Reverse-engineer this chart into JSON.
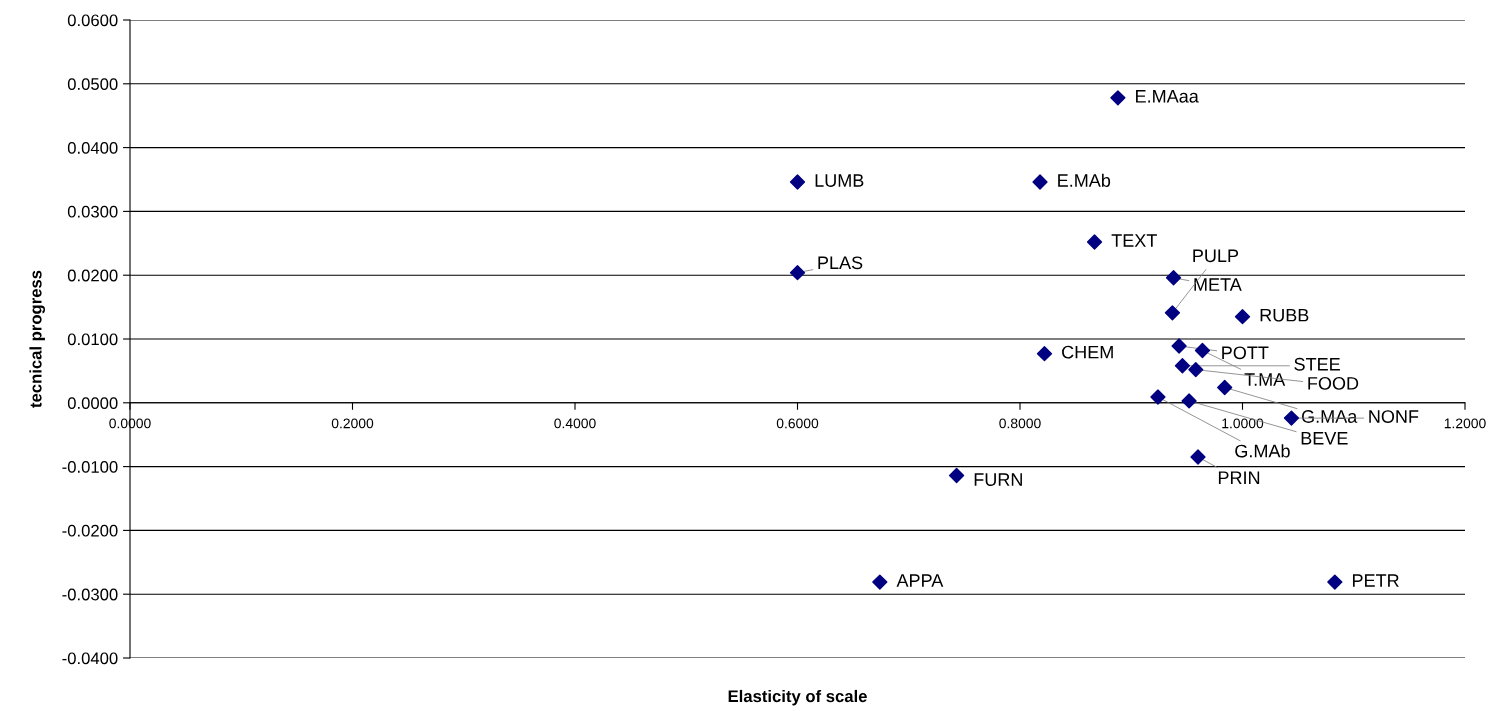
{
  "chart_data": {
    "type": "scatter",
    "xlabel": "Elasticity of scale",
    "ylabel": "tecnical progress",
    "x": [
      0.888,
      0.6,
      0.818,
      0.867,
      0.6,
      0.938,
      0.937,
      1.0,
      0.943,
      0.964,
      0.822,
      0.946,
      0.958,
      0.984,
      0.924,
      0.952,
      1.044,
      0.96,
      0.743,
      0.674,
      1.083
    ],
    "values": [
      0.0478,
      0.0346,
      0.0346,
      0.0252,
      0.0204,
      0.0196,
      0.0141,
      0.0135,
      0.0089,
      0.0082,
      0.0077,
      0.0058,
      0.0052,
      0.0024,
      0.0009,
      0.0003,
      -0.0024,
      -0.0085,
      -0.0114,
      -0.0281,
      -0.0281
    ],
    "color": "#000080",
    "marker": "diamond",
    "grid": "y",
    "legend": false,
    "annotations": [
      {
        "text": "E.MAaa",
        "x": 0.888,
        "y": 0.0478
      },
      {
        "text": "LUMB",
        "x": 0.6,
        "y": 0.0346
      },
      {
        "text": "E.MAb",
        "x": 0.818,
        "y": 0.0346
      },
      {
        "text": "TEXT",
        "x": 0.867,
        "y": 0.0252
      },
      {
        "text": "PLAS",
        "x": 0.6,
        "y": 0.0204
      },
      {
        "text": "META",
        "x": 0.938,
        "y": 0.0196
      },
      {
        "text": "PULP",
        "x": 0.937,
        "y": 0.0141
      },
      {
        "text": "RUBB",
        "x": 1.0,
        "y": 0.0135
      },
      {
        "text": "POTT",
        "x": 0.943,
        "y": 0.0089
      },
      {
        "text": "T.MA",
        "x": 0.964,
        "y": 0.0082
      },
      {
        "text": "CHEM",
        "x": 0.822,
        "y": 0.0077
      },
      {
        "text": "STEE",
        "x": 0.946,
        "y": 0.0058
      },
      {
        "text": "FOOD",
        "x": 0.958,
        "y": 0.0052
      },
      {
        "text": "G.MAa",
        "x": 0.984,
        "y": 0.0024
      },
      {
        "text": "G.MAb",
        "x": 0.924,
        "y": 0.0009
      },
      {
        "text": "BEVE",
        "x": 0.952,
        "y": 0.0003
      },
      {
        "text": "NONF",
        "x": 1.044,
        "y": -0.0024
      },
      {
        "text": "PRIN",
        "x": 0.96,
        "y": -0.0085
      },
      {
        "text": "FURN",
        "x": 0.743,
        "y": -0.0114
      },
      {
        "text": "APPA",
        "x": 0.674,
        "y": -0.0281
      },
      {
        "text": "PETR",
        "x": 1.083,
        "y": -0.0281
      }
    ],
    "xlim": [
      0,
      1.2
    ],
    "xticks": [
      {
        "value": 0,
        "label": "0.0000"
      },
      {
        "value": 0.2,
        "label": "0.2000"
      },
      {
        "value": 0.4,
        "label": "0.4000"
      },
      {
        "value": 0.6,
        "label": "0.6000"
      },
      {
        "value": 0.8,
        "label": "0.8000"
      },
      {
        "value": 1.0,
        "label": "1.0000"
      },
      {
        "value": 1.2,
        "label": "1.2000"
      }
    ],
    "ylim": [
      -0.04,
      0.06
    ],
    "yticks": [
      {
        "value": -0.04,
        "label": "-0.0400"
      },
      {
        "value": -0.03,
        "label": "-0.0300"
      },
      {
        "value": -0.02,
        "label": "-0.0200"
      },
      {
        "value": -0.01,
        "label": "-0.0100"
      },
      {
        "value": 0,
        "label": "0.0000"
      },
      {
        "value": 0.01,
        "label": "0.0100"
      },
      {
        "value": 0.02,
        "label": "0.0200"
      },
      {
        "value": 0.03,
        "label": "0.0300"
      },
      {
        "value": 0.04,
        "label": "0.0400"
      },
      {
        "value": 0.05,
        "label": "0.0500"
      },
      {
        "value": 0.06,
        "label": "0.0600"
      }
    ]
  }
}
